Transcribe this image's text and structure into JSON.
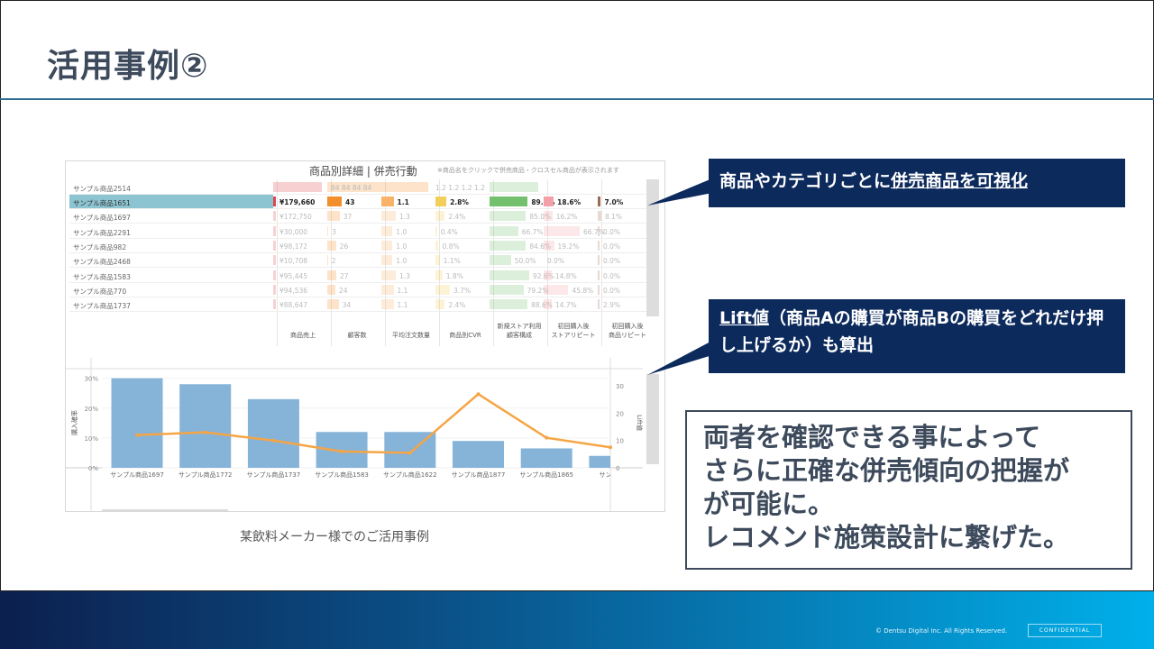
{
  "title": "活用事例②",
  "dashboard": {
    "title": "商品別詳細 | 併売行動",
    "note": "※商品名をクリックで併売商品・クロスセル商品が表示されます",
    "columns": [
      "商品売上",
      "顧客数",
      "平均注文数量",
      "商品別CVR",
      "新規ストア利用\n顧客構成",
      "初回購入後\nストアリピート",
      "初回購入後\n商品リピート"
    ],
    "colors": [
      "#e0474c",
      "#f28e2b",
      "#f8b26a",
      "#f2cf5b",
      "#73c16e",
      "#f4a0a8",
      "#9c6b55"
    ],
    "header_row": {
      "name": "サンプル商品2514",
      "c1": "84 84 84 84",
      "c2": "1.2 1.2 1.2 1.2"
    },
    "rows": [
      {
        "name": "サンプル商品1651",
        "selected": true,
        "values": [
          "¥179,660",
          "43",
          "1.1",
          "2.8%",
          "89.1%",
          "18.6%",
          "7.0%"
        ]
      },
      {
        "name": "サンプル商品1697",
        "values": [
          "¥172,750",
          "37",
          "1.3",
          "2.4%",
          "85.0%",
          "16.2%",
          "8.1%"
        ]
      },
      {
        "name": "サンプル商品2291",
        "values": [
          "¥30,000",
          "3",
          "1.0",
          "0.4%",
          "66.7%",
          "66.7%",
          "0.0%"
        ]
      },
      {
        "name": "サンプル商品982",
        "values": [
          "¥98,172",
          "26",
          "1.0",
          "0.8%",
          "84.6%",
          "19.2%",
          "0.0%"
        ]
      },
      {
        "name": "サンプル商品2468",
        "values": [
          "¥10,708",
          "2",
          "1.0",
          "1.1%",
          "50.0%",
          "0.0%",
          "0.0%"
        ]
      },
      {
        "name": "サンプル商品1583",
        "values": [
          "¥95,445",
          "27",
          "1.3",
          "1.8%",
          "92.6%",
          "14.8%",
          "0.0%"
        ]
      },
      {
        "name": "サンプル商品770",
        "values": [
          "¥94,536",
          "24",
          "1.1",
          "3.7%",
          "79.2%",
          "45.8%",
          "0.0%"
        ]
      },
      {
        "name": "サンプル商品1737",
        "values": [
          "¥88,647",
          "34",
          "1.1",
          "2.4%",
          "88.6%",
          "14.7%",
          "2.9%"
        ]
      }
    ]
  },
  "chart_data": {
    "type": "bar+line",
    "categories": [
      "サンプル商品1697",
      "サンプル商品1772",
      "サンプル商品1737",
      "サンプル商品1583",
      "サンプル商品1622",
      "サンプル商品1877",
      "サンプル商品1865",
      "サンプル商"
    ],
    "series": [
      {
        "name": "購入確率",
        "type": "bar",
        "axis": "left",
        "values": [
          30,
          28,
          23,
          12,
          12,
          9,
          6.5,
          4
        ],
        "color": "#86b3d8"
      },
      {
        "name": "Lift値",
        "type": "line",
        "axis": "right",
        "values": [
          12,
          13,
          10,
          6,
          5.5,
          27,
          11,
          7.5
        ],
        "color": "#f5a545"
      }
    ],
    "ylabel": "購入確率",
    "y2label": "Lift値",
    "yticks": [
      "30%",
      "20%",
      "10%",
      "0%"
    ],
    "y2ticks": [
      "30",
      "20",
      "10",
      "0"
    ],
    "ylim": [
      0,
      32
    ],
    "y2lim": [
      0,
      35
    ]
  },
  "caption": "某飲料メーカー様でのご活用事例",
  "callout1": {
    "pre": "商品やカテゴリごとに",
    "u": "併売商品を可視化"
  },
  "callout2": {
    "u": "Lift値",
    "text": "（商品Aの購買が商品Bの購買をどれだけ押し上げるか）も算出"
  },
  "summary": "両者を確認できる事によって\nさらに正確な併売傾向の把握が\nが可能に。\nレコメンド施策設計に繋げた。",
  "footer": {
    "copyright": "© Dentsu Digital Inc. All Rights Reserved.",
    "confidential": "CONFIDENTIAL"
  }
}
